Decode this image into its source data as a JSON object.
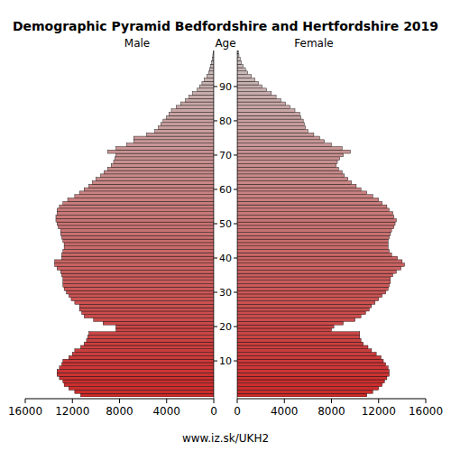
{
  "chart_data": {
    "type": "bar",
    "orientation": "horizontal",
    "title": "Demographic Pyramid Bedfordshire and Hertfordshire 2019",
    "y_label": "Age",
    "source": "www.iz.sk/UKH2",
    "color": "#cc2a2a",
    "xlim": [
      0,
      16000
    ],
    "xticks": [
      0,
      4000,
      8000,
      12000,
      16000
    ],
    "categories": [
      null,
      null,
      null,
      null,
      null,
      null,
      null,
      null,
      null,
      null,
      10,
      null,
      null,
      null,
      null,
      null,
      null,
      null,
      null,
      null,
      20,
      null,
      null,
      null,
      null,
      null,
      null,
      null,
      null,
      null,
      30,
      null,
      null,
      null,
      null,
      null,
      null,
      null,
      null,
      null,
      40,
      null,
      null,
      null,
      null,
      null,
      null,
      null,
      null,
      null,
      50,
      null,
      null,
      null,
      null,
      null,
      null,
      null,
      null,
      null,
      60,
      null,
      null,
      null,
      null,
      null,
      null,
      null,
      null,
      null,
      70,
      null,
      null,
      null,
      null,
      null,
      null,
      null,
      null,
      null,
      80,
      null,
      null,
      null,
      null,
      null,
      null,
      null,
      null,
      null,
      90,
      null,
      null,
      null,
      null,
      null,
      null,
      null,
      null,
      null,
      null
    ],
    "series": [
      {
        "name": "Male",
        "values": [
          11300,
          11800,
          12300,
          12700,
          12800,
          13100,
          13300,
          13300,
          13100,
          12900,
          12800,
          12300,
          12000,
          11800,
          11300,
          11000,
          10800,
          10700,
          10600,
          8300,
          8300,
          9400,
          10200,
          11000,
          11200,
          11400,
          11400,
          11800,
          12100,
          12300,
          12500,
          12700,
          12800,
          12800,
          12800,
          12900,
          13000,
          13300,
          13500,
          13500,
          12900,
          12900,
          12800,
          12700,
          12700,
          12800,
          12900,
          13000,
          13000,
          13200,
          13300,
          13400,
          13400,
          13300,
          13300,
          13100,
          12800,
          12400,
          11800,
          11400,
          11000,
          10600,
          10300,
          10000,
          9600,
          9300,
          9000,
          8700,
          8500,
          8400,
          8300,
          9000,
          8300,
          7400,
          6800,
          6800,
          5700,
          5000,
          4700,
          4500,
          4300,
          4000,
          3800,
          3600,
          3200,
          2800,
          2400,
          2100,
          1800,
          1400,
          1200,
          1000,
          800,
          600,
          450,
          350,
          250,
          180,
          120,
          80,
          60
        ]
      },
      {
        "name": "Female",
        "values": [
          11000,
          11500,
          12000,
          12300,
          12500,
          12700,
          12900,
          12900,
          12800,
          12600,
          12400,
          12200,
          11800,
          11400,
          11100,
          10700,
          10500,
          10400,
          10400,
          8000,
          8200,
          9000,
          10000,
          10500,
          10900,
          11200,
          11400,
          11700,
          12000,
          12300,
          12600,
          12800,
          12900,
          13000,
          13000,
          13200,
          13500,
          13900,
          14200,
          14000,
          13600,
          13100,
          12900,
          12800,
          12800,
          12800,
          12900,
          13000,
          13100,
          13300,
          13400,
          13500,
          13300,
          13200,
          12900,
          12700,
          12300,
          12000,
          11500,
          11000,
          10500,
          10100,
          9700,
          9400,
          9100,
          8900,
          8600,
          8400,
          8500,
          8700,
          9000,
          9600,
          8900,
          8000,
          7400,
          7000,
          6500,
          6000,
          5800,
          5700,
          5600,
          5400,
          5300,
          4900,
          4500,
          4100,
          3700,
          3300,
          2900,
          2500,
          2100,
          1800,
          1500,
          1200,
          900,
          700,
          500,
          350,
          250,
          150,
          100
        ]
      }
    ]
  }
}
